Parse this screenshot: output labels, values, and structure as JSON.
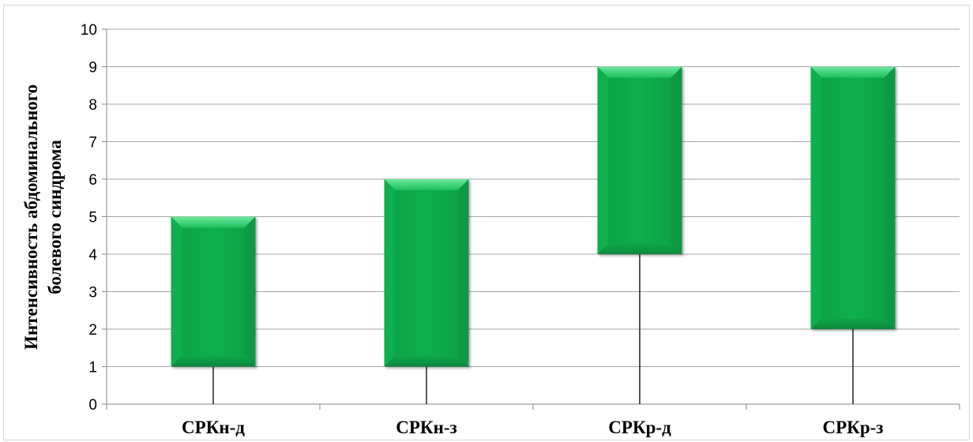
{
  "chart_data": {
    "type": "box",
    "title": "",
    "ylabel_lines": [
      "Интенсивность абдоминального",
      "болевого синдрома"
    ],
    "xlabel": "",
    "ylim": [
      0,
      10
    ],
    "yticks": [
      0,
      1,
      2,
      3,
      4,
      5,
      6,
      7,
      8,
      9,
      10
    ],
    "grid": true,
    "categories": [
      "СРКн-д",
      "СРКн-з",
      "СРКр-д",
      "СРКр-з"
    ],
    "series": [
      {
        "min": [
          0,
          0,
          0,
          0
        ],
        "box_low": [
          1,
          1,
          4,
          2
        ],
        "box_high": [
          5,
          6,
          9,
          9
        ]
      }
    ],
    "colors": {
      "box_fill": "#0bb04f",
      "box_light": "#5ee08f",
      "box_dark": "#078a3c",
      "grid": "#a6a6a6",
      "whisker": "#000000"
    }
  }
}
